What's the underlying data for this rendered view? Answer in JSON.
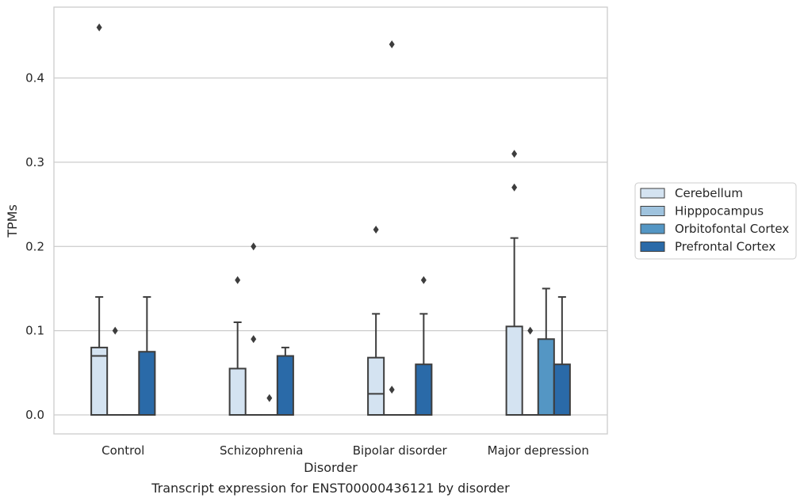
{
  "caption": "Transcript expression for ENST00000436121 by disorder",
  "chart_data": {
    "type": "boxplot",
    "title": "",
    "xlabel": "Disorder",
    "ylabel": "TPMs",
    "ylim": [
      -0.022,
      0.484
    ],
    "yticks": [
      0.0,
      0.1,
      0.2,
      0.3,
      0.4
    ],
    "ytick_labels": [
      "0.0",
      "0.1",
      "0.2",
      "0.3",
      "0.4"
    ],
    "grid": "horizontal",
    "legend_position": "right",
    "categories": [
      "Control",
      "Schizophrenia",
      "Bipolar disorder",
      "Major depression"
    ],
    "series": [
      {
        "name": "Cerebellum",
        "color": "#d4e3f1",
        "boxes": [
          {
            "q1": 0.0,
            "median": 0.07,
            "q3": 0.08,
            "whisker_low": 0.0,
            "whisker_high": 0.14,
            "fliers": [
              0.46
            ]
          },
          {
            "q1": 0.0,
            "median": 0.0,
            "q3": 0.055,
            "whisker_low": 0.0,
            "whisker_high": 0.11,
            "fliers": [
              0.16
            ]
          },
          {
            "q1": 0.0,
            "median": 0.025,
            "q3": 0.068,
            "whisker_low": 0.0,
            "whisker_high": 0.12,
            "fliers": [
              0.22
            ]
          },
          {
            "q1": 0.0,
            "median": 0.0,
            "q3": 0.105,
            "whisker_low": 0.0,
            "whisker_high": 0.21,
            "fliers": [
              0.27,
              0.31
            ]
          }
        ]
      },
      {
        "name": "Hipppocampus",
        "color": "#9fc3de",
        "boxes": [
          {
            "q1": 0.0,
            "median": 0.0,
            "q3": 0.0,
            "whisker_low": 0.0,
            "whisker_high": 0.0,
            "fliers": [
              0.1
            ]
          },
          {
            "q1": 0.0,
            "median": 0.0,
            "q3": 0.0,
            "whisker_low": 0.0,
            "whisker_high": 0.0,
            "fliers": [
              0.09,
              0.2
            ]
          },
          {
            "q1": 0.0,
            "median": 0.0,
            "q3": 0.0,
            "whisker_low": 0.0,
            "whisker_high": 0.0,
            "fliers": [
              0.03,
              0.44
            ]
          },
          {
            "q1": 0.0,
            "median": 0.0,
            "q3": 0.0,
            "whisker_low": 0.0,
            "whisker_high": 0.0,
            "fliers": [
              0.1
            ]
          }
        ]
      },
      {
        "name": "Orbitofontal Cortex",
        "color": "#5496c4",
        "boxes": [
          {
            "q1": 0.0,
            "median": 0.0,
            "q3": 0.0,
            "whisker_low": 0.0,
            "whisker_high": 0.0,
            "fliers": []
          },
          {
            "q1": 0.0,
            "median": 0.0,
            "q3": 0.0,
            "whisker_low": 0.0,
            "whisker_high": 0.0,
            "fliers": [
              0.02
            ]
          },
          {
            "q1": 0.0,
            "median": 0.0,
            "q3": 0.0,
            "whisker_low": 0.0,
            "whisker_high": 0.0,
            "fliers": []
          },
          {
            "q1": 0.0,
            "median": 0.0,
            "q3": 0.09,
            "whisker_low": 0.0,
            "whisker_high": 0.15,
            "fliers": []
          }
        ]
      },
      {
        "name": "Prefrontal Cortex",
        "color": "#2a6aa8",
        "boxes": [
          {
            "q1": 0.0,
            "median": 0.0,
            "q3": 0.075,
            "whisker_low": 0.0,
            "whisker_high": 0.14,
            "fliers": []
          },
          {
            "q1": 0.0,
            "median": 0.0,
            "q3": 0.07,
            "whisker_low": 0.0,
            "whisker_high": 0.08,
            "fliers": []
          },
          {
            "q1": 0.0,
            "median": 0.0,
            "q3": 0.06,
            "whisker_low": 0.0,
            "whisker_high": 0.12,
            "fliers": [
              0.16
            ]
          },
          {
            "q1": 0.0,
            "median": 0.0,
            "q3": 0.06,
            "whisker_low": 0.0,
            "whisker_high": 0.14,
            "fliers": []
          }
        ]
      }
    ]
  }
}
